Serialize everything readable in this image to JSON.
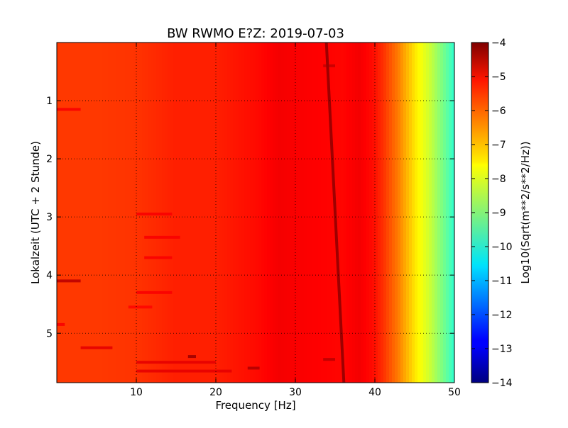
{
  "chart_data": {
    "type": "heatmap",
    "title": "BW RWMO E?Z: 2019-07-03",
    "xlabel": "Frequency [Hz]",
    "ylabel": "Lokalzeit (UTC + 2 Stunde)",
    "colorbar_label": "Log10(Sqrt(m**2/s**2/Hz))",
    "xlim": [
      0,
      50
    ],
    "ylim": [
      5.85,
      0
    ],
    "x_ticks": [
      10,
      20,
      30,
      40,
      50
    ],
    "y_ticks": [
      1,
      2,
      3,
      4,
      5
    ],
    "colorbar_range": [
      -14,
      -4
    ],
    "colorbar_ticks": [
      -4,
      -5,
      -6,
      -7,
      -8,
      -9,
      -10,
      -11,
      -12,
      -13,
      -14
    ],
    "colormap": "jet",
    "grid": true,
    "base_spectrum": [
      {
        "freq": 0,
        "level": -5.8
      },
      {
        "freq": 5,
        "level": -5.8
      },
      {
        "freq": 10,
        "level": -5.75
      },
      {
        "freq": 15,
        "level": -5.55
      },
      {
        "freq": 20,
        "level": -5.55
      },
      {
        "freq": 25,
        "level": -5.35
      },
      {
        "freq": 28,
        "level": -5.15
      },
      {
        "freq": 30,
        "level": -5.2
      },
      {
        "freq": 33,
        "level": -5.25
      },
      {
        "freq": 36,
        "level": -5.3
      },
      {
        "freq": 38,
        "level": -5.15
      },
      {
        "freq": 40,
        "level": -5.4
      },
      {
        "freq": 41,
        "level": -5.7
      },
      {
        "freq": 42,
        "level": -6.1
      },
      {
        "freq": 43,
        "level": -6.5
      },
      {
        "freq": 44,
        "level": -7.0
      },
      {
        "freq": 45,
        "level": -7.5
      },
      {
        "freq": 46,
        "level": -7.9
      },
      {
        "freq": 47,
        "level": -8.3
      },
      {
        "freq": 48,
        "level": -8.8
      },
      {
        "freq": 49,
        "level": -9.3
      },
      {
        "freq": 50,
        "level": -9.8
      }
    ],
    "tone_line": {
      "level": -4.3,
      "points": [
        {
          "time": 0,
          "freq": 33.9
        },
        {
          "time": 5.85,
          "freq": 36.1
        }
      ]
    },
    "events": [
      {
        "time": 0.4,
        "freq_start": 33.5,
        "freq_end": 35,
        "level": -4.7
      },
      {
        "time": 1.15,
        "freq_start": 0,
        "freq_end": 3,
        "level": -5.2
      },
      {
        "time": 2.95,
        "freq_start": 10,
        "freq_end": 14.5,
        "level": -5.2
      },
      {
        "time": 3.35,
        "freq_start": 11,
        "freq_end": 15.5,
        "level": -5.2
      },
      {
        "time": 3.7,
        "freq_start": 11,
        "freq_end": 14.5,
        "level": -5.2
      },
      {
        "time": 4.1,
        "freq_start": 0,
        "freq_end": 3,
        "level": -4.6
      },
      {
        "time": 4.3,
        "freq_start": 10,
        "freq_end": 14.5,
        "level": -5.2
      },
      {
        "time": 4.55,
        "freq_start": 9,
        "freq_end": 12,
        "level": -5.3
      },
      {
        "time": 4.85,
        "freq_start": 0,
        "freq_end": 1,
        "level": -5.2
      },
      {
        "time": 5.25,
        "freq_start": 3,
        "freq_end": 7,
        "level": -5.0
      },
      {
        "time": 5.4,
        "freq_start": 16.5,
        "freq_end": 17.5,
        "level": -4.3
      },
      {
        "time": 5.45,
        "freq_start": 33.5,
        "freq_end": 35,
        "level": -4.6
      },
      {
        "time": 5.5,
        "freq_start": 10,
        "freq_end": 20,
        "level": -5.0
      },
      {
        "time": 5.6,
        "freq_start": 24,
        "freq_end": 25.5,
        "level": -4.5
      },
      {
        "time": 5.65,
        "freq_start": 10,
        "freq_end": 22,
        "level": -5.0
      }
    ]
  }
}
